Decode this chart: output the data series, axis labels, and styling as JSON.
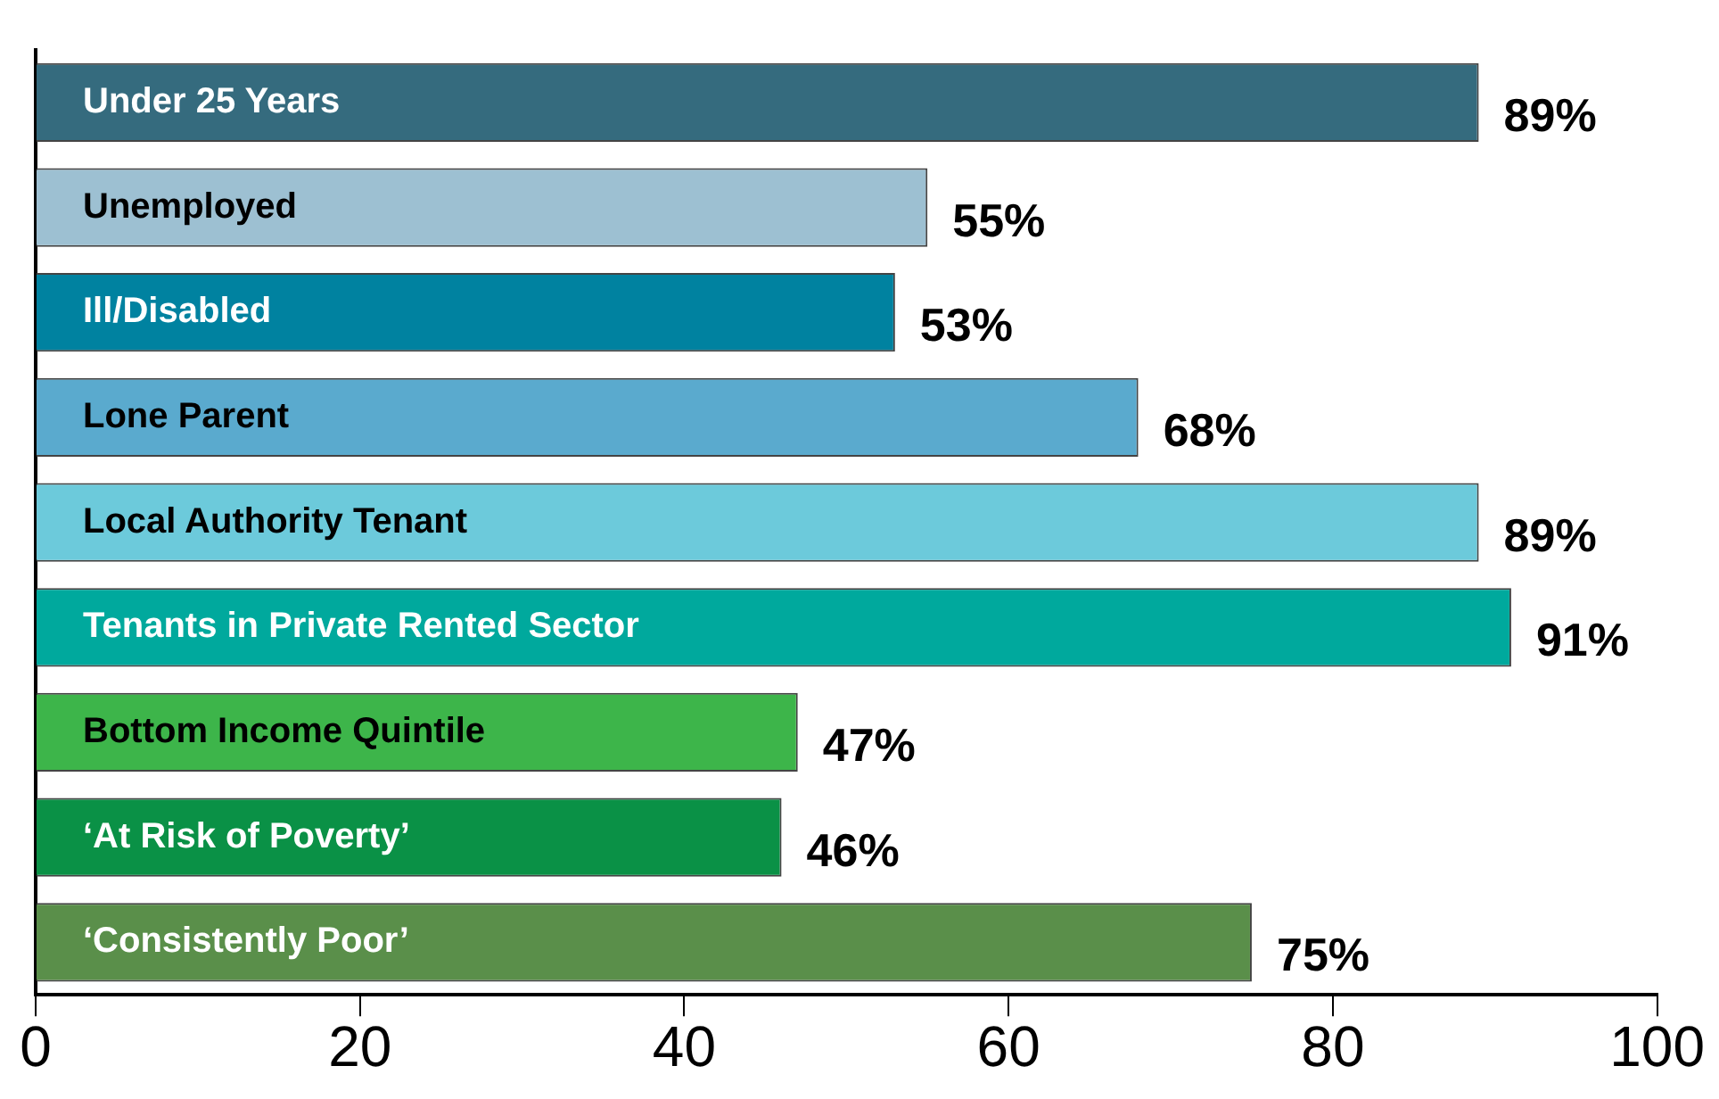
{
  "chart_data": {
    "type": "bar",
    "orientation": "horizontal",
    "categories": [
      "Under 25 Years",
      "Unemployed",
      "Ill/Disabled",
      "Lone Parent",
      "Local Authority Tenant",
      "Tenants in Private Rented Sector",
      "Bottom Income Quintile",
      "‘At Risk of Poverty’",
      "‘Consistently Poor’"
    ],
    "values": [
      89,
      55,
      53,
      68,
      89,
      91,
      47,
      46,
      75
    ],
    "colors": [
      "#356b7e",
      "#9dc0d2",
      "#0082a0",
      "#5aaace",
      "#6ccadb",
      "#00a99d",
      "#3db54a",
      "#0a9146",
      "#5a8f4a"
    ],
    "value_labels": [
      "89%",
      "55%",
      "53%",
      "68%",
      "89%",
      "91%",
      "47%",
      "46%",
      "75%"
    ],
    "xlim": [
      0,
      100
    ],
    "xticks": [
      0,
      20,
      40,
      60,
      80,
      100
    ],
    "grid": false,
    "legend": false,
    "tick_labels": "x"
  }
}
